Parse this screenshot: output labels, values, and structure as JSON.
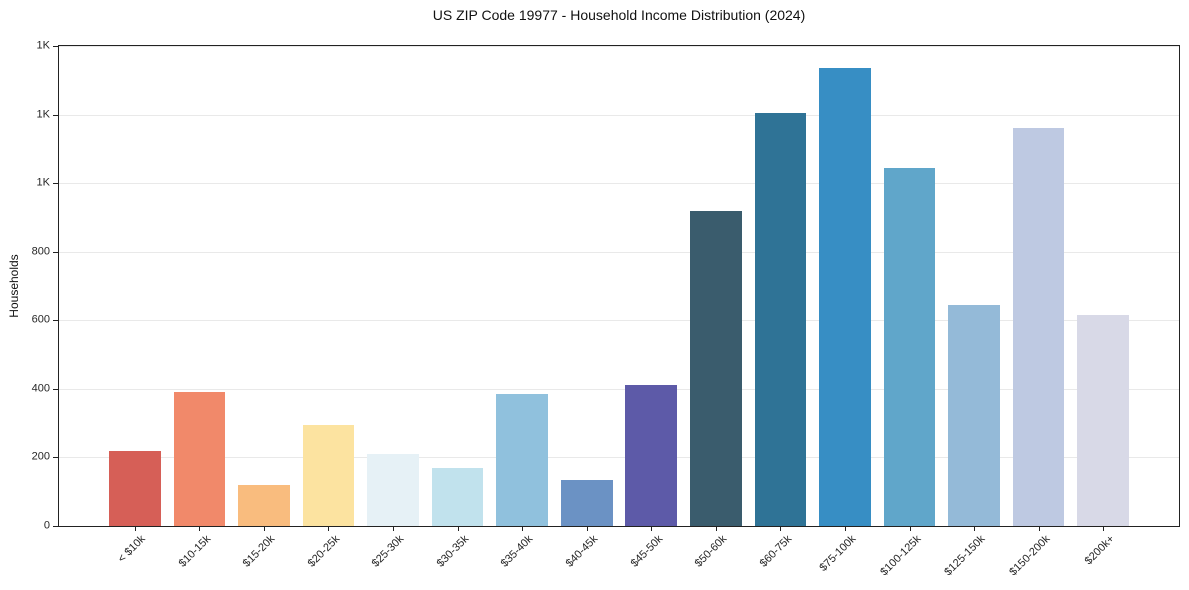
{
  "chart_data": {
    "type": "bar",
    "title": "US ZIP Code 19977 - Household Income Distribution (2024)",
    "xlabel": "",
    "ylabel": "Households",
    "categories": [
      "< $10k",
      "$10-15k",
      "$15-20k",
      "$20-25k",
      "$25-30k",
      "$30-35k",
      "$35-40k",
      "$40-45k",
      "$45-50k",
      "$50-60k",
      "$60-75k",
      "$75-100k",
      "$100-125k",
      "$125-150k",
      "$150-200k",
      "$200k+"
    ],
    "values": [
      220,
      390,
      120,
      295,
      210,
      170,
      385,
      135,
      410,
      920,
      1205,
      1335,
      1045,
      645,
      1160,
      615
    ],
    "bar_colors": [
      "#d65f57",
      "#f1896a",
      "#f9bc7e",
      "#fce3a0",
      "#e6f1f6",
      "#c1e2ed",
      "#90c1dd",
      "#6b92c4",
      "#5d5aa8",
      "#3a5c6d",
      "#2f7396",
      "#378ec4",
      "#60a6ca",
      "#94bad8",
      "#bec9e2",
      "#d8d9e7"
    ],
    "ylim": [
      0,
      1400
    ],
    "yticks": [
      0,
      200,
      400,
      600,
      800,
      1000,
      1200,
      1400
    ],
    "ytick_labels": [
      "0",
      "200",
      "400",
      "600",
      "800",
      "1K",
      "1K",
      "1K"
    ],
    "grid": "horizontal-only",
    "gridline_color": "#e9e9e9",
    "axis_color": "#222222",
    "tick_label_color": "#262626",
    "x_tick_rotation_deg": 45,
    "legend": "none",
    "background_color": "#ffffff"
  }
}
